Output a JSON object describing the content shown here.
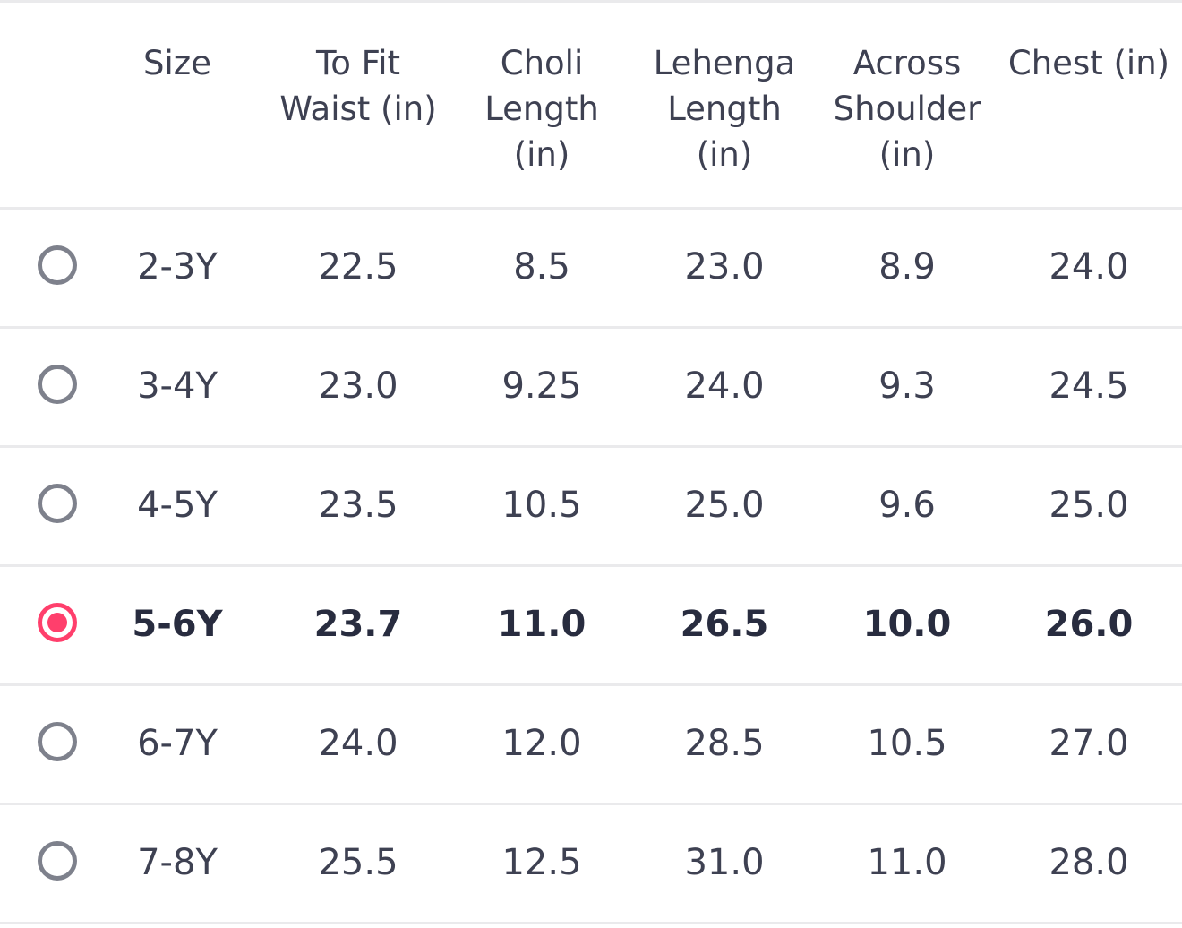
{
  "headers": {
    "size": "Size",
    "waist": "To Fit\nWaist (in)",
    "choli": "Choli\nLength (in)",
    "lehenga": "Lehenga\nLength (in)",
    "shoulder": "Across\nShoulder\n(in)",
    "chest": "Chest (in)"
  },
  "selected_size": "5-6Y",
  "accent_color": "#ff3f6c",
  "rows": [
    {
      "size": "2-3Y",
      "waist": "22.5",
      "choli": "8.5",
      "lehenga": "23.0",
      "shoulder": "8.9",
      "chest": "24.0",
      "selected": false
    },
    {
      "size": "3-4Y",
      "waist": "23.0",
      "choli": "9.25",
      "lehenga": "24.0",
      "shoulder": "9.3",
      "chest": "24.5",
      "selected": false
    },
    {
      "size": "4-5Y",
      "waist": "23.5",
      "choli": "10.5",
      "lehenga": "25.0",
      "shoulder": "9.6",
      "chest": "25.0",
      "selected": false
    },
    {
      "size": "5-6Y",
      "waist": "23.7",
      "choli": "11.0",
      "lehenga": "26.5",
      "shoulder": "10.0",
      "chest": "26.0",
      "selected": true
    },
    {
      "size": "6-7Y",
      "waist": "24.0",
      "choli": "12.0",
      "lehenga": "28.5",
      "shoulder": "10.5",
      "chest": "27.0",
      "selected": false
    },
    {
      "size": "7-8Y",
      "waist": "25.5",
      "choli": "12.5",
      "lehenga": "31.0",
      "shoulder": "11.0",
      "chest": "28.0",
      "selected": false
    }
  ]
}
